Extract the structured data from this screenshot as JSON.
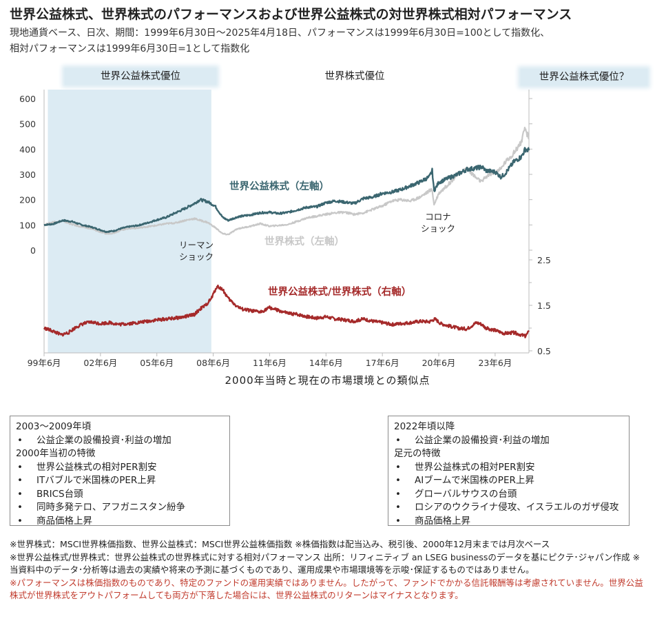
{
  "title": "世界公益株式、世界株式のパフォーマンスおよび世界公益株式の対世界株式相対パフォーマンス",
  "subtitle_line1": "現地通貨ベース、日次、期間：1999年6月30日～2025年4月18日、パフォーマンスは1999年6月30日=100として指数化、",
  "subtitle_line2": "相対パフォーマンスは1999年6月30日=1として指数化",
  "regions": {
    "left": "世界公益株式優位",
    "middle": "世界株式優位",
    "right": "世界公益株式優位？"
  },
  "chart_data": {
    "type": "line",
    "x_tick_labels": [
      "99年6月",
      "02年6月",
      "05年6月",
      "08年6月",
      "11年6月",
      "14年6月",
      "17年6月",
      "20年6月",
      "23年6月"
    ],
    "x_tick_years": [
      1999.5,
      2002.5,
      2005.5,
      2008.5,
      2011.5,
      2014.5,
      2017.5,
      2020.5,
      2023.5
    ],
    "xlim": [
      1999.5,
      2025.3
    ],
    "left_axis": {
      "ylim": [
        0,
        600
      ],
      "ticks": [
        "0",
        "100",
        "200",
        "300",
        "400",
        "500",
        "600"
      ]
    },
    "right_axis": {
      "ylim": [
        0.5,
        2.5
      ],
      "ticks": [
        "0.5",
        "1.5",
        "2.5"
      ]
    },
    "shaded_period": [
      1999.7,
      2008.4
    ],
    "series": [
      {
        "name": "世界公益株式（左軸）",
        "axis": "left",
        "color": "#3b6670",
        "x": [
          1999.5,
          2000.0,
          2000.5,
          2001.0,
          2001.5,
          2002.0,
          2002.5,
          2002.8,
          2003.2,
          2003.6,
          2004.0,
          2004.5,
          2005.0,
          2005.5,
          2006.0,
          2006.5,
          2007.0,
          2007.5,
          2007.8,
          2008.2,
          2008.6,
          2009.0,
          2009.3,
          2009.8,
          2010.5,
          2011.0,
          2011.5,
          2012.0,
          2012.5,
          2013.0,
          2013.5,
          2014.0,
          2014.5,
          2015.0,
          2015.5,
          2016.0,
          2016.5,
          2017.0,
          2017.5,
          2018.0,
          2018.5,
          2019.0,
          2019.5,
          2020.0,
          2020.15,
          2020.25,
          2020.5,
          2021.0,
          2021.5,
          2022.0,
          2022.5,
          2022.8,
          2023.0,
          2023.5,
          2023.8,
          2024.0,
          2024.5,
          2024.9,
          2025.1,
          2025.3
        ],
        "values": [
          100,
          104,
          118,
          113,
          100,
          92,
          80,
          73,
          76,
          86,
          93,
          98,
          108,
          120,
          130,
          148,
          165,
          185,
          200,
          192,
          175,
          130,
          118,
          132,
          140,
          148,
          150,
          145,
          150,
          160,
          170,
          172,
          188,
          195,
          190,
          185,
          205,
          210,
          225,
          230,
          240,
          255,
          270,
          290,
          315,
          235,
          268,
          285,
          300,
          320,
          325,
          330,
          315,
          310,
          290,
          300,
          350,
          370,
          400,
          395
        ]
      },
      {
        "name": "世界株式（左軸）",
        "axis": "left",
        "color": "#c8c8c8",
        "x": [
          1999.5,
          2000.0,
          2000.5,
          2001.0,
          2001.5,
          2002.0,
          2002.5,
          2002.8,
          2003.2,
          2003.6,
          2004.0,
          2004.5,
          2005.0,
          2005.5,
          2006.0,
          2006.5,
          2007.0,
          2007.5,
          2007.8,
          2008.2,
          2008.6,
          2009.0,
          2009.3,
          2009.8,
          2010.5,
          2011.0,
          2011.5,
          2012.0,
          2012.5,
          2013.0,
          2013.5,
          2014.0,
          2014.5,
          2015.0,
          2015.5,
          2016.0,
          2016.5,
          2017.0,
          2017.5,
          2018.0,
          2018.5,
          2019.0,
          2019.5,
          2020.0,
          2020.15,
          2020.25,
          2020.5,
          2021.0,
          2021.5,
          2022.0,
          2022.5,
          2022.8,
          2023.0,
          2023.5,
          2023.8,
          2024.0,
          2024.5,
          2024.9,
          2025.1,
          2025.3
        ],
        "values": [
          100,
          112,
          115,
          102,
          92,
          85,
          72,
          65,
          68,
          80,
          86,
          88,
          93,
          98,
          105,
          108,
          118,
          125,
          118,
          110,
          90,
          65,
          62,
          85,
          95,
          105,
          95,
          98,
          102,
          115,
          128,
          135,
          142,
          148,
          150,
          142,
          148,
          162,
          175,
          195,
          200,
          195,
          210,
          235,
          240,
          180,
          225,
          260,
          300,
          325,
          285,
          270,
          290,
          310,
          320,
          345,
          385,
          430,
          480,
          440
        ]
      },
      {
        "name": "世界公益株式/世界株式（右軸）",
        "axis": "right",
        "color": "#a52a2a",
        "x": [
          1999.5,
          2000.0,
          2000.4,
          2000.8,
          2001.2,
          2001.6,
          2002.0,
          2002.5,
          2003.0,
          2003.5,
          2004.0,
          2004.5,
          2005.0,
          2005.5,
          2006.0,
          2006.5,
          2007.0,
          2007.5,
          2007.8,
          2008.1,
          2008.4,
          2008.7,
          2009.0,
          2009.3,
          2009.7,
          2010.0,
          2010.5,
          2011.0,
          2011.5,
          2012.0,
          2012.5,
          2013.0,
          2013.5,
          2014.0,
          2014.5,
          2015.0,
          2015.5,
          2016.0,
          2016.5,
          2017.0,
          2017.5,
          2018.0,
          2018.5,
          2019.0,
          2019.5,
          2020.0,
          2020.3,
          2020.6,
          2021.0,
          2021.5,
          2022.0,
          2022.5,
          2022.8,
          2023.0,
          2023.5,
          2024.0,
          2024.5,
          2024.9,
          2025.1,
          2025.3
        ],
        "values": [
          1.0,
          0.93,
          0.85,
          0.9,
          1.02,
          1.1,
          1.13,
          1.1,
          1.12,
          1.08,
          1.1,
          1.12,
          1.15,
          1.18,
          1.2,
          1.22,
          1.25,
          1.3,
          1.42,
          1.5,
          1.65,
          1.92,
          1.85,
          1.65,
          1.5,
          1.42,
          1.38,
          1.35,
          1.45,
          1.38,
          1.32,
          1.3,
          1.25,
          1.22,
          1.25,
          1.2,
          1.18,
          1.15,
          1.2,
          1.15,
          1.12,
          1.08,
          1.1,
          1.12,
          1.15,
          1.14,
          1.2,
          1.1,
          1.05,
          1.0,
          0.98,
          1.12,
          1.08,
          1.0,
          0.95,
          0.88,
          0.9,
          0.85,
          0.82,
          0.92
        ]
      }
    ],
    "annotations": [
      "リーマン",
      "ショック",
      "コロナ",
      "ショック"
    ]
  },
  "chart_subtitle": "2000年当時と現在の市場環境との類似点",
  "panel_left": {
    "lines": [
      {
        "type": "head",
        "text": "2003～2009年頃"
      },
      {
        "type": "item",
        "text": "公益企業の設備投資･利益の増加"
      },
      {
        "type": "head",
        "text": "2000年当初の特徴"
      },
      {
        "type": "item",
        "text": "世界公益株式の相対PER割安"
      },
      {
        "type": "item",
        "text": "ITバブルで米国株のPER上昇"
      },
      {
        "type": "item",
        "text": "BRICS台頭"
      },
      {
        "type": "item",
        "text": "同時多発テロ、アフガニスタン紛争"
      },
      {
        "type": "item",
        "text": "商品価格上昇"
      }
    ]
  },
  "panel_right": {
    "lines": [
      {
        "type": "head",
        "text": "2022年頃以降"
      },
      {
        "type": "item",
        "text": "公益企業の設備投資･利益の増加"
      },
      {
        "type": "head",
        "text": "足元の特徴"
      },
      {
        "type": "item",
        "text": "世界公益株式の相対PER割安"
      },
      {
        "type": "item",
        "text": "AIブームで米国株のPER上昇"
      },
      {
        "type": "item",
        "text": "グローバルサウスの台頭"
      },
      {
        "type": "item",
        "text": "ロシアのウクライナ侵攻、イスラエルのガザ侵攻"
      },
      {
        "type": "item",
        "text": "商品価格上昇"
      }
    ]
  },
  "notes": {
    "line1": "※世界株式：MSCI世界株価指数、世界公益株式：MSCI世界公益株価指数 ※株価指数は配当込み、税引後、2000年12月末までは月次ベース",
    "line2": "※世界公益株式/世界株式：世界公益株式の世界株式に対する相対パフォーマンス 出所：リフィニティブ an LSEG businessのデータを基にピクテ･ジャパン作成 ※当資料中のデータ･分析等は過去の実績や将来の予測に基づくものであり、運用成果や市場環境等を示唆･保証するものではありません。",
    "red": "※パフォーマンスは株価指数のものであり、特定のファンドの運用実績ではありません。したがって、ファンドでかかる信託報酬等は考慮されていません。世界公益株式が世界株式をアウトパフォームしても両方が下落した場合には、世界公益株式のリターンはマイナスとなります。"
  }
}
